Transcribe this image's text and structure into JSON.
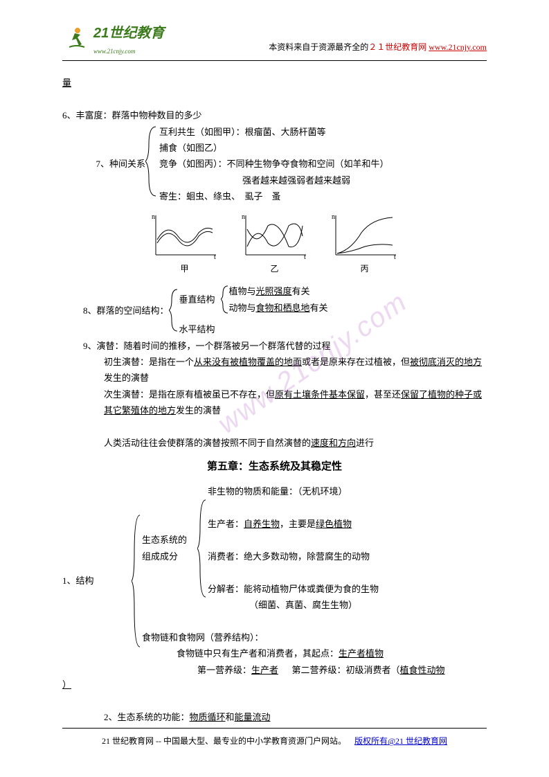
{
  "header": {
    "logo_main": "21世纪教育",
    "logo_sub": "www.21cnjy.com",
    "note_prefix": "本资料来自于资源最齐全的",
    "note_highlight": "２１世纪教育网",
    "note_link": "www.21cnjy.com"
  },
  "page_top_char": "量",
  "section6": {
    "title": "6、丰富度：群落中物种数目的多少"
  },
  "section7": {
    "label": "7、种间关系",
    "items": {
      "a": "互利共生（如图甲）：根瘤菌、大肠杆菌等",
      "b": "捕食（如图乙）",
      "c": "竞争（如图丙）：不同种生物争夺食物和空间（如羊和牛）",
      "c_sub": "强者越来越强弱者越来越弱",
      "d": "寄生：蛔虫、绦虫、　虱子　蚤"
    }
  },
  "charts": {
    "labels": {
      "a": "甲",
      "b": "乙",
      "c": "丙"
    },
    "axis_y": "n",
    "axis_x": "t",
    "chart_a": {
      "type": "line",
      "width": 100,
      "height": 70,
      "stroke": "#000000",
      "background": "#ffffff",
      "paths": [
        "M10 40 Q25 15 40 35 Q55 55 70 30 Q80 20 90 25",
        "M10 45 Q25 20 40 40 Q55 60 70 35 Q80 25 90 30"
      ]
    },
    "chart_b": {
      "type": "line",
      "width": 100,
      "height": 70,
      "stroke": "#000000",
      "background": "#ffffff",
      "paths": [
        "M10 50 Q25 15 40 45 Q55 60 70 20 Q85 10 90 35",
        "M10 25 Q25 55 40 20 Q55 10 70 50 Q85 55 90 20"
      ]
    },
    "chart_c": {
      "type": "line",
      "width": 100,
      "height": 70,
      "stroke": "#000000",
      "background": "#ffffff",
      "paths": [
        "M10 60 Q30 55 45 30 Q60 10 90 8",
        "M10 60 Q30 58 50 50 Q70 45 90 48"
      ]
    }
  },
  "section8": {
    "label": "8、群落的空间结构：",
    "vertical": "垂直结构",
    "horizontal": "水平结构",
    "v_plant_prefix": "植物与",
    "v_plant_key": "光照强度",
    "v_plant_suffix": "有关",
    "v_animal_prefix": "动物与",
    "v_animal_key": "食物和栖息地",
    "v_animal_suffix": "有关"
  },
  "section9": {
    "title": "9、演替：随着时间的推移，一个群落被另一个群落代替的过程",
    "primary_label": "初生演替：是指在一个",
    "primary_u1": "从来没有被植物覆盖的地面",
    "primary_mid": "或者是原来存在过植被，但",
    "primary_u2": "被彻底消灭的地方",
    "primary_end": "发生的演替",
    "secondary_label": "次生演替：是指在原有植被虽已不存在，但",
    "secondary_u1": "原有土壤条件基本保留",
    "secondary_mid": "，甚至还",
    "secondary_u2": "保留了植物的种子或其它繁殖体的地方",
    "secondary_end": "发生的演替",
    "human_prefix": "人类活动往往会使群落的演替按照不同于自然演替的",
    "human_key": "速度和方向",
    "human_suffix": "进行"
  },
  "chapter5": {
    "title": "第五章：生态系统及其稳定性",
    "structure_label": "1、结构",
    "components_label": "生态系统的\n组成成分",
    "abiotic": "非生物的物质和能量：（无机环境）",
    "producer_prefix": "生产者：",
    "producer_u1": "自养生物",
    "producer_mid": "，主要是",
    "producer_u2": "绿色植物",
    "consumer": "消费者：绝大多数动物，除营腐生的动物",
    "decomposer": "分解者：能将动植物尸体或粪便为食的生物",
    "decomposer_sub": "（细菌、真菌、腐生生物）",
    "food_chain": "食物链和食物网（营养结构）：",
    "food_chain_line1_prefix": "食物链中只有生产者和消费者，其起点：",
    "food_chain_line1_u": "生产者植物",
    "trophic1_label": "第一营养级：",
    "trophic1_u": "生产者",
    "trophic2_label": "第二营养级：初级消费者（",
    "trophic2_u": "植食性动物",
    "trophic2_end": "）"
  },
  "section2func": {
    "prefix": "2、生态系统的功能：",
    "u1": "物质循环",
    "mid": "和",
    "u2": "能量流动"
  },
  "footer": {
    "text": "21 世纪教育网 -- 中国最大型、最专业的中小学教育资源门户网站。",
    "link": "版权所有@21 世纪教育网"
  },
  "watermark": "www.21cnjy.com"
}
